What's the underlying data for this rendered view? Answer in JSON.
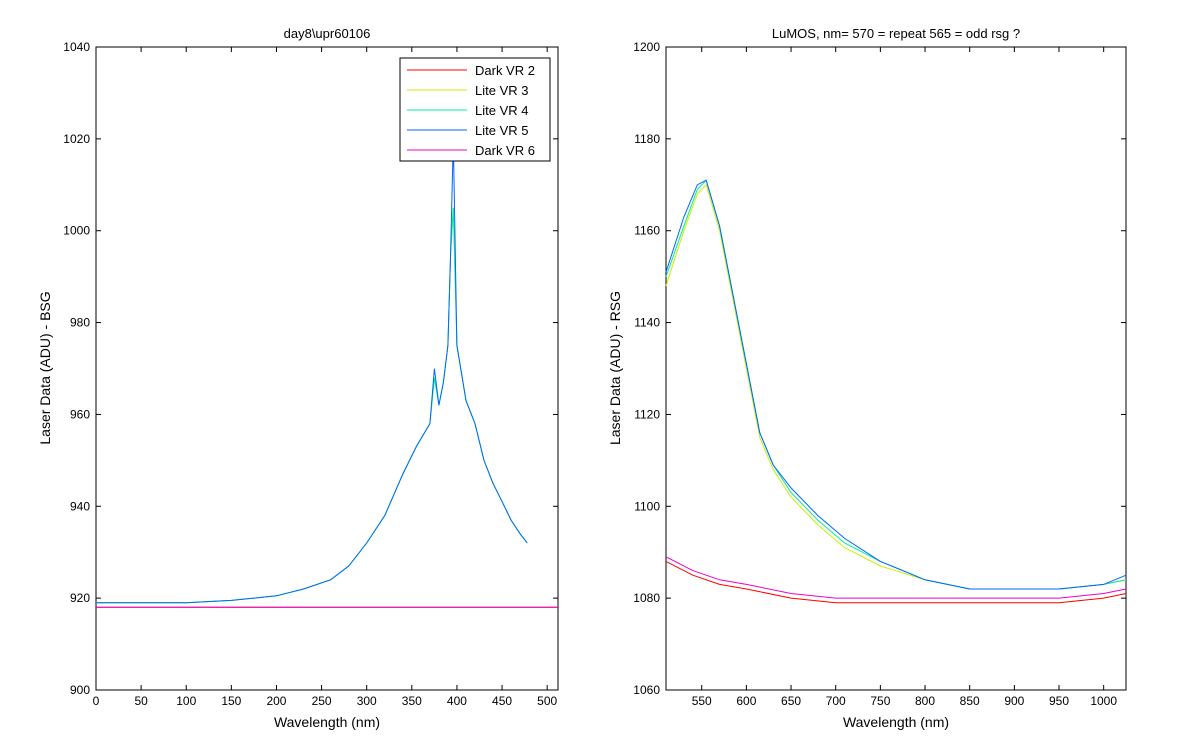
{
  "chart_data": [
    {
      "type": "line",
      "title": "day8\\upr60106",
      "xlabel": "Wavelength (nm)",
      "ylabel": "Laser Data (ADU) - BSG",
      "xlim": [
        0,
        512
      ],
      "ylim": [
        900,
        1040
      ],
      "xticks": [
        0,
        50,
        100,
        150,
        200,
        250,
        300,
        350,
        400,
        450,
        500
      ],
      "yticks": [
        900,
        920,
        940,
        960,
        980,
        1000,
        1020,
        1040
      ],
      "legend": "top-right",
      "grid": false,
      "series": [
        {
          "name": "Dark VR 2",
          "color": "#ff0000",
          "x": [
            0,
            512
          ],
          "y": [
            918,
            918
          ]
        },
        {
          "name": "Lite VR 3",
          "color": "#ccee00",
          "x": [
            0,
            50,
            100,
            150,
            200,
            230,
            260,
            280,
            300,
            320,
            340,
            355,
            370,
            375,
            380,
            385,
            390,
            393,
            396,
            400,
            410,
            420,
            430,
            440,
            450,
            460,
            470,
            478
          ],
          "y": [
            919,
            919,
            919,
            919.5,
            920.5,
            922,
            924,
            927,
            932,
            938,
            947,
            953,
            958,
            968,
            962,
            967,
            975,
            995,
            1005,
            975,
            963,
            958,
            950,
            945,
            941,
            937,
            934,
            932
          ]
        },
        {
          "name": "Lite VR 4",
          "color": "#00ee99",
          "x": [
            0,
            50,
            100,
            150,
            200,
            230,
            260,
            280,
            300,
            320,
            340,
            355,
            370,
            375,
            380,
            385,
            390,
            393,
            396,
            400,
            410,
            420,
            430,
            440,
            450,
            460,
            470,
            478
          ],
          "y": [
            919,
            919,
            919,
            919.5,
            920.5,
            922,
            924,
            927,
            932,
            938,
            947,
            953,
            958,
            968,
            962,
            967,
            975,
            995,
            1005,
            975,
            963,
            958,
            950,
            945,
            941,
            937,
            934,
            932
          ]
        },
        {
          "name": "Lite VR 5",
          "color": "#0066ff",
          "x": [
            0,
            50,
            100,
            150,
            200,
            230,
            260,
            280,
            300,
            320,
            340,
            355,
            370,
            375,
            380,
            385,
            390,
            393,
            396,
            400,
            410,
            420,
            430,
            440,
            450,
            460,
            470,
            478
          ],
          "y": [
            919,
            919,
            919,
            919.5,
            920.5,
            922,
            924,
            927,
            932,
            938,
            947,
            953,
            958,
            970,
            962,
            967,
            975,
            995,
            1020,
            975,
            963,
            958,
            950,
            945,
            941,
            937,
            934,
            932
          ]
        },
        {
          "name": "Dark VR 6",
          "color": "#ee00cc",
          "x": [
            0,
            512
          ],
          "y": [
            918,
            918
          ]
        }
      ]
    },
    {
      "type": "line",
      "title": "LuMOS, nm= 570 = repeat 565 = odd rsg ?",
      "xlabel": "Wavelength (nm)",
      "ylabel": "Laser Data (ADU) - RSG",
      "xlim": [
        510,
        1025
      ],
      "ylim": [
        1060,
        1200
      ],
      "xticks": [
        550,
        600,
        650,
        700,
        750,
        800,
        850,
        900,
        950,
        1000
      ],
      "yticks": [
        1060,
        1080,
        1100,
        1120,
        1140,
        1160,
        1180,
        1200
      ],
      "grid": false,
      "series": [
        {
          "color": "#ff0000",
          "x": [
            510,
            540,
            570,
            600,
            650,
            700,
            750,
            800,
            850,
            900,
            950,
            1000,
            1025
          ],
          "y": [
            1088,
            1085,
            1083,
            1082,
            1080,
            1079,
            1079,
            1079,
            1079,
            1079,
            1079,
            1080,
            1081
          ]
        },
        {
          "color": "#ccee00",
          "x": [
            510,
            530,
            545,
            555,
            570,
            585,
            600,
            615,
            630,
            650,
            680,
            710,
            750,
            800,
            850,
            900,
            950,
            1000,
            1025
          ],
          "y": [
            1148,
            1160,
            1168,
            1170,
            1160,
            1145,
            1130,
            1115,
            1108,
            1102,
            1096,
            1091,
            1087,
            1084,
            1082,
            1082,
            1082,
            1083,
            1084
          ]
        },
        {
          "color": "#00ee99",
          "x": [
            510,
            530,
            545,
            555,
            570,
            585,
            600,
            615,
            630,
            650,
            680,
            710,
            750,
            800,
            850,
            900,
            950,
            1000,
            1025
          ],
          "y": [
            1150,
            1161,
            1169,
            1171,
            1161,
            1146,
            1131,
            1116,
            1109,
            1103,
            1097,
            1092,
            1088,
            1084,
            1082,
            1082,
            1082,
            1083,
            1084
          ]
        },
        {
          "color": "#0066ff",
          "x": [
            510,
            530,
            545,
            555,
            570,
            585,
            600,
            615,
            630,
            650,
            680,
            710,
            750,
            800,
            850,
            900,
            950,
            1000,
            1025
          ],
          "y": [
            1151,
            1163,
            1170,
            1171,
            1161,
            1146,
            1131,
            1116,
            1109,
            1104,
            1098,
            1093,
            1088,
            1084,
            1082,
            1082,
            1082,
            1083,
            1085
          ]
        },
        {
          "color": "#ee00cc",
          "x": [
            510,
            540,
            570,
            600,
            650,
            700,
            750,
            800,
            850,
            900,
            950,
            1000,
            1025
          ],
          "y": [
            1089,
            1086,
            1084,
            1083,
            1081,
            1080,
            1080,
            1080,
            1080,
            1080,
            1080,
            1081,
            1082
          ]
        }
      ]
    }
  ]
}
